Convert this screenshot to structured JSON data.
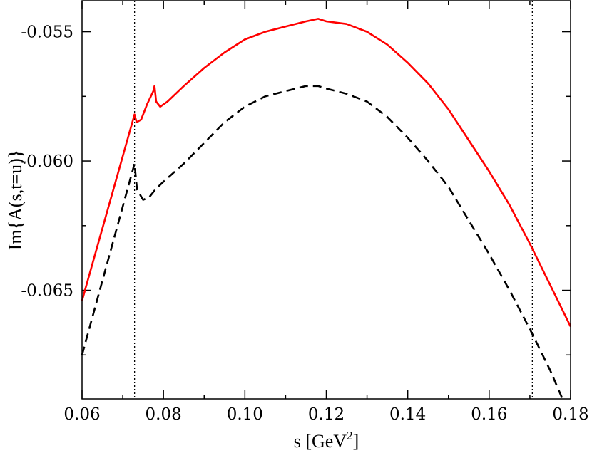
{
  "chart_data": {
    "type": "line",
    "title": "",
    "xlabel": "s [GeV",
    "xlabel_sup": "2",
    "xlabel_end": "]",
    "ylabel": "Im{A(s,t=u)}",
    "xlim": [
      0.06,
      0.18
    ],
    "ylim": [
      -0.0692,
      -0.0538
    ],
    "xticks": [
      0.06,
      0.08,
      0.1,
      0.12,
      0.14,
      0.16,
      0.18
    ],
    "xtick_labels": [
      "0.06",
      "0.08",
      "0.10",
      "0.12",
      "0.14",
      "0.16",
      "0.18"
    ],
    "xminor": [
      0.07,
      0.09,
      0.11,
      0.13,
      0.15,
      0.17
    ],
    "yticks": [
      -0.065,
      -0.06,
      -0.055
    ],
    "ytick_labels": [
      "-0.065",
      "-0.060",
      "-0.055"
    ],
    "yminor": [
      -0.0675,
      -0.0625,
      -0.0575
    ],
    "vlines": [
      0.0729,
      0.1706
    ],
    "series": [
      {
        "name": "solid",
        "color": "#ff0000",
        "dash": "none",
        "x": [
          0.06,
          0.0729,
          0.0734,
          0.0745,
          0.076,
          0.0775,
          0.0778,
          0.0782,
          0.0792,
          0.081,
          0.085,
          0.09,
          0.095,
          0.1,
          0.105,
          0.11,
          0.115,
          0.118,
          0.12,
          0.125,
          0.13,
          0.135,
          0.14,
          0.145,
          0.15,
          0.155,
          0.16,
          0.165,
          0.17,
          0.175,
          0.18
        ],
        "y": [
          -0.0654,
          -0.0582,
          -0.0585,
          -0.0584,
          -0.0578,
          -0.0573,
          -0.0571,
          -0.0577,
          -0.0579,
          -0.0577,
          -0.0571,
          -0.0564,
          -0.0558,
          -0.0553,
          -0.055,
          -0.0548,
          -0.0546,
          -0.0545,
          -0.0546,
          -0.0547,
          -0.055,
          -0.0555,
          -0.0562,
          -0.057,
          -0.058,
          -0.0592,
          -0.0604,
          -0.0617,
          -0.0632,
          -0.0648,
          -0.0664
        ]
      },
      {
        "name": "dashed",
        "color": "#000000",
        "dash": "12,7",
        "x": [
          0.06,
          0.0729,
          0.0735,
          0.075,
          0.0765,
          0.078,
          0.08,
          0.085,
          0.09,
          0.095,
          0.1,
          0.105,
          0.11,
          0.115,
          0.118,
          0.12,
          0.125,
          0.13,
          0.135,
          0.14,
          0.145,
          0.15,
          0.155,
          0.16,
          0.165,
          0.17,
          0.175,
          0.178
        ],
        "y": [
          -0.0675,
          -0.0601,
          -0.0611,
          -0.0615,
          -0.0614,
          -0.0611,
          -0.0608,
          -0.0601,
          -0.0593,
          -0.0585,
          -0.0579,
          -0.0575,
          -0.0573,
          -0.0571,
          -0.0571,
          -0.0572,
          -0.0574,
          -0.0577,
          -0.0583,
          -0.0591,
          -0.06,
          -0.061,
          -0.0623,
          -0.0636,
          -0.065,
          -0.0665,
          -0.0681,
          -0.0692
        ]
      }
    ]
  }
}
